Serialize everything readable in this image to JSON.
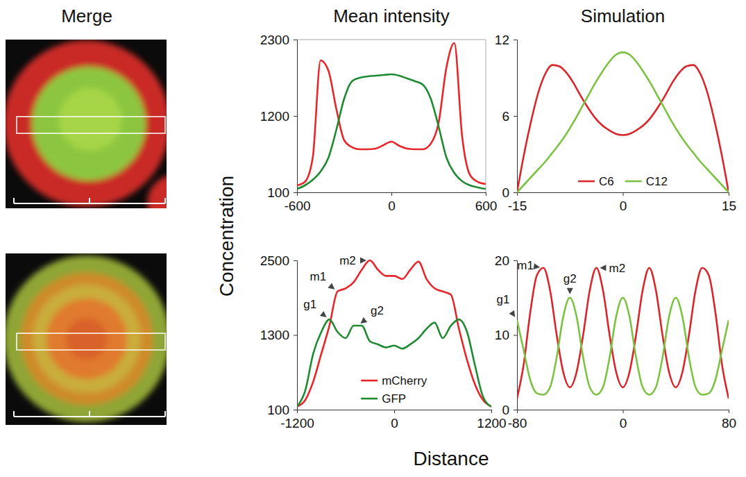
{
  "merge_title": "Merge",
  "shared_axes": {
    "ylabel": "Concentration",
    "xlabel": "Distance"
  },
  "chart_data": [
    {
      "type": "line",
      "title": "Mean intensity",
      "x": [
        -600,
        -550,
        -500,
        -450,
        -400,
        -350,
        -300,
        -250,
        -200,
        -150,
        -100,
        -50,
        0,
        50,
        100,
        150,
        200,
        250,
        300,
        350,
        400,
        450,
        500,
        550,
        600
      ],
      "series": [
        {
          "color": "#e8262a",
          "values": [
            200,
            250,
            600,
            2000,
            1850,
            1300,
            850,
            750,
            720,
            720,
            730,
            780,
            830,
            770,
            730,
            720,
            720,
            800,
            1100,
            1900,
            2250,
            900,
            350,
            250,
            220
          ]
        },
        {
          "color": "#1f8a32",
          "values": [
            150,
            200,
            280,
            400,
            600,
            1000,
            1450,
            1700,
            1750,
            1770,
            1780,
            1790,
            1800,
            1780,
            1740,
            1700,
            1650,
            1450,
            1050,
            600,
            380,
            260,
            200,
            170,
            150
          ]
        }
      ],
      "xlim": [
        -600,
        600
      ],
      "xticks": [
        -600,
        0,
        600
      ],
      "ylim": [
        100,
        2300
      ],
      "yticks": [
        100,
        1200,
        2300
      ]
    },
    {
      "type": "line",
      "title": "Simulation",
      "x": [
        -15,
        -14,
        -13,
        -12,
        -11,
        -10,
        -9,
        -8,
        -7,
        -6,
        -5,
        -4,
        -3,
        -2,
        -1,
        0,
        1,
        2,
        3,
        4,
        5,
        6,
        7,
        8,
        9,
        10,
        11,
        12,
        13,
        14,
        15
      ],
      "series": [
        {
          "name": "C6",
          "color": "#d8262b",
          "values": [
            0,
            3,
            5.6,
            7.8,
            9.3,
            10,
            9.9,
            9.4,
            8.6,
            7.6,
            6.7,
            5.9,
            5.3,
            4.9,
            4.6,
            4.5,
            4.6,
            4.9,
            5.3,
            5.9,
            6.7,
            7.6,
            8.6,
            9.4,
            9.9,
            10,
            9.3,
            7.8,
            5.6,
            3,
            0
          ]
        },
        {
          "name": "C12",
          "color": "#7cc242",
          "values": [
            0,
            0.6,
            1.2,
            1.8,
            2.4,
            3.1,
            3.8,
            4.6,
            5.5,
            6.5,
            7.5,
            8.5,
            9.4,
            10.2,
            10.8,
            11,
            10.8,
            10.2,
            9.4,
            8.5,
            7.5,
            6.5,
            5.5,
            4.6,
            3.8,
            3.1,
            2.4,
            1.8,
            1.2,
            0.6,
            0
          ]
        }
      ],
      "xlim": [
        -15,
        15
      ],
      "xticks": [
        -15,
        0,
        15
      ],
      "ylim": [
        0,
        12
      ],
      "yticks": [
        0,
        6,
        12
      ],
      "legend": "bottom"
    },
    {
      "type": "line",
      "x": [
        -1200,
        -1100,
        -1000,
        -900,
        -800,
        -700,
        -600,
        -500,
        -400,
        -300,
        -200,
        -100,
        0,
        100,
        200,
        300,
        400,
        500,
        600,
        700,
        800,
        900,
        1000,
        1100,
        1200
      ],
      "series": [
        {
          "name": "mCherry",
          "color": "#e8262a",
          "values": [
            150,
            250,
            550,
            1000,
            1450,
            2000,
            2050,
            2150,
            2350,
            2500,
            2350,
            2250,
            2250,
            2200,
            2350,
            2480,
            2200,
            2050,
            2000,
            1950,
            1400,
            900,
            500,
            250,
            150
          ]
        },
        {
          "name": "GFP",
          "color": "#1f8a32",
          "values": [
            150,
            400,
            1000,
            1350,
            1550,
            1350,
            1250,
            1450,
            1450,
            1200,
            1150,
            1100,
            1130,
            1080,
            1150,
            1250,
            1400,
            1500,
            1250,
            1450,
            1550,
            1350,
            800,
            300,
            150
          ]
        }
      ],
      "xlim": [
        -1200,
        1200
      ],
      "xticks": [
        -1200,
        0,
        1200
      ],
      "ylim": [
        100,
        2500
      ],
      "yticks": [
        100,
        1300,
        2500
      ],
      "legend": "lower center",
      "annotations": [
        {
          "text": "g1",
          "x": -800,
          "y": 1550
        },
        {
          "text": "m1",
          "x": -700,
          "y": 2000
        },
        {
          "text": "g2",
          "x": -450,
          "y": 1450
        },
        {
          "text": "m2",
          "x": -300,
          "y": 2500
        }
      ]
    },
    {
      "type": "line",
      "x": [
        -80,
        -75,
        -70,
        -65,
        -60,
        -55,
        -50,
        -45,
        -40,
        -35,
        -30,
        -25,
        -20,
        -15,
        -10,
        -5,
        0,
        5,
        10,
        15,
        20,
        25,
        30,
        35,
        40,
        45,
        50,
        55,
        60,
        65,
        70,
        75,
        80
      ],
      "series": [
        {
          "color": "#d8262b",
          "values": [
            1.5,
            6,
            13,
            18,
            19,
            16,
            10,
            5,
            3,
            5,
            10,
            16,
            19,
            16,
            10,
            5,
            3,
            5,
            10,
            16,
            19,
            16,
            10,
            5,
            3,
            5,
            10,
            16,
            19,
            18,
            13,
            6,
            1.5
          ]
        },
        {
          "color": "#7cc242",
          "values": [
            12,
            8,
            4,
            2.2,
            2,
            3,
            7,
            12.5,
            15,
            12.5,
            7,
            3,
            2,
            3,
            7,
            12.5,
            15,
            12.5,
            7,
            3,
            2,
            3,
            7,
            12.5,
            15,
            12.5,
            7,
            3,
            2,
            2.2,
            4,
            8,
            12
          ]
        }
      ],
      "xlim": [
        -80,
        80
      ],
      "xticks": [
        -80,
        0,
        80
      ],
      "ylim": [
        0,
        20
      ],
      "yticks": [
        0,
        10,
        20
      ],
      "annotations": [
        {
          "text": "g1",
          "x": -80,
          "y": 12
        },
        {
          "text": "m1",
          "x": -60,
          "y": 19
        },
        {
          "text": "g2",
          "x": -40,
          "y": 15
        },
        {
          "text": "m2",
          "x": -20,
          "y": 19
        }
      ]
    }
  ]
}
